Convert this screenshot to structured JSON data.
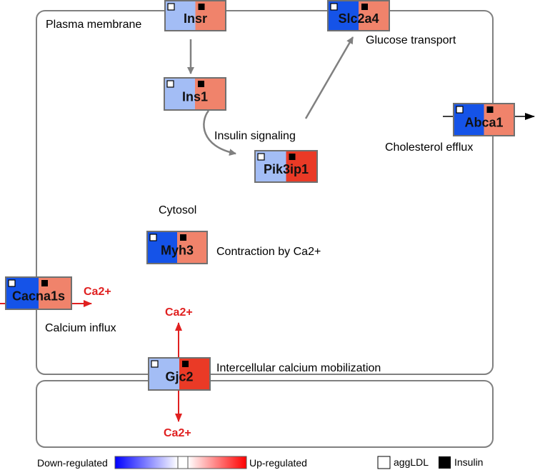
{
  "compartments": {
    "cell": "Plasma membrane",
    "cytosol": "Cytosol"
  },
  "genes": [
    {
      "id": "insr",
      "name": "Insr",
      "aggLDL_color": "#a3bdf5",
      "insulin_color": "#f0836b"
    },
    {
      "id": "ins1",
      "name": "Ins1",
      "aggLDL_color": "#a3bdf5",
      "insulin_color": "#f0836b"
    },
    {
      "id": "slc2a4",
      "name": "Slc2a4",
      "aggLDL_color": "#1553e8",
      "insulin_color": "#f0836b"
    },
    {
      "id": "pik3ip1",
      "name": "Pik3ip1",
      "aggLDL_color": "#a3bdf5",
      "insulin_color": "#ea3a26"
    },
    {
      "id": "abca1",
      "name": "Abca1",
      "aggLDL_color": "#1553e8",
      "insulin_color": "#f0836b"
    },
    {
      "id": "myh3",
      "name": "Myh3",
      "aggLDL_color": "#1553e8",
      "insulin_color": "#f0836b"
    },
    {
      "id": "cacna1s",
      "name": "Cacna1s",
      "aggLDL_color": "#1553e8",
      "insulin_color": "#f0836b"
    },
    {
      "id": "gjc2",
      "name": "Gjc2",
      "aggLDL_color": "#a3bdf5",
      "insulin_color": "#ea3a26"
    }
  ],
  "process_labels": {
    "glucose_transport": "Glucose transport",
    "insulin_signaling": "Insulin signaling",
    "cholesterol_efflux": "Cholesterol efflux",
    "contraction": "Contraction by Ca2+",
    "calcium_influx": "Calcium influx",
    "intercellular": "Intercellular calcium mobilization"
  },
  "ions": {
    "influx": "Ca2+",
    "gjc2_top": "Ca2+",
    "gjc2_bottom": "Ca2+"
  },
  "legend": {
    "down": "Down-regulated",
    "up": "Up-regulated",
    "aggLDL": "aggLDL",
    "insulin": "Insulin"
  },
  "colors": {
    "down": "#0000ff",
    "up": "#ff0000",
    "edge": "#808080",
    "ion": "#e02020"
  }
}
